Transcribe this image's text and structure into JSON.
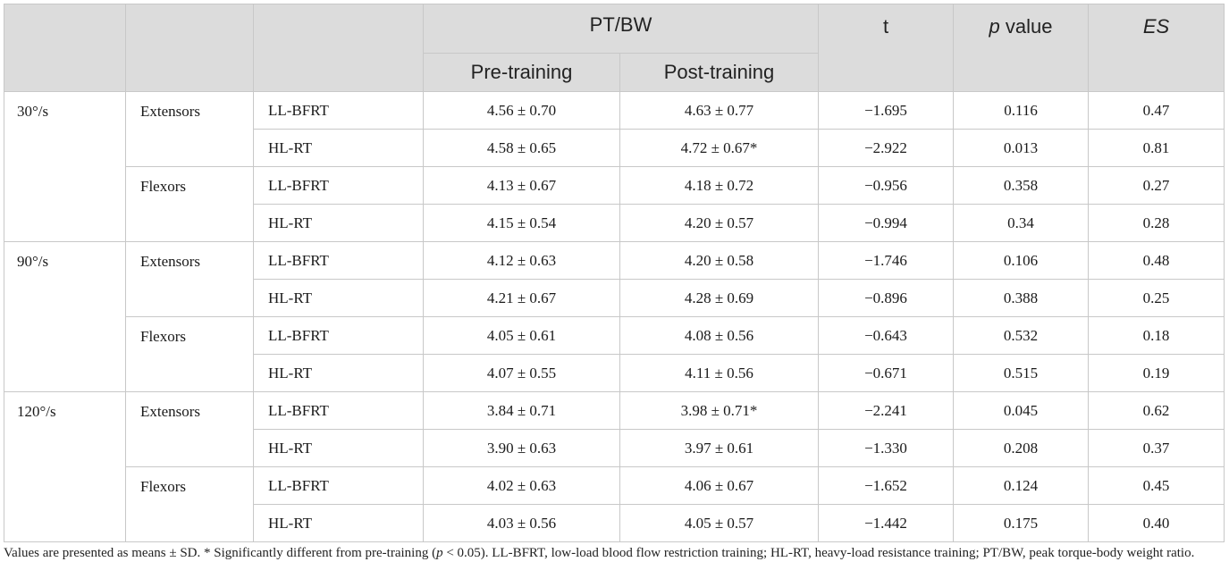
{
  "header": {
    "group_label": "PT/BW",
    "pre_label": "Pre-training",
    "post_label": "Post-training",
    "t_label": "t",
    "p_label_italic": "p",
    "p_label_rest": " value",
    "es_label": "ES"
  },
  "rows": [
    {
      "speed": "30°/s",
      "muscle": "Extensors",
      "group": "LL-BFRT",
      "pre": "4.56 ± 0.70",
      "post": "4.63 ± 0.77",
      "t": "−1.695",
      "p": "0.116",
      "es": "0.47"
    },
    {
      "speed": "",
      "muscle": "",
      "group": "HL-RT",
      "pre": "4.58 ± 0.65",
      "post": "4.72 ± 0.67*",
      "t": "−2.922",
      "p": "0.013",
      "es": "0.81"
    },
    {
      "speed": "",
      "muscle": "Flexors",
      "group": "LL-BFRT",
      "pre": "4.13 ± 0.67",
      "post": "4.18 ± 0.72",
      "t": "−0.956",
      "p": "0.358",
      "es": "0.27"
    },
    {
      "speed": "",
      "muscle": "",
      "group": "HL-RT",
      "pre": "4.15 ± 0.54",
      "post": "4.20 ± 0.57",
      "t": "−0.994",
      "p": "0.34",
      "es": "0.28"
    },
    {
      "speed": "90°/s",
      "muscle": "Extensors",
      "group": "LL-BFRT",
      "pre": "4.12 ± 0.63",
      "post": "4.20 ± 0.58",
      "t": "−1.746",
      "p": "0.106",
      "es": "0.48"
    },
    {
      "speed": "",
      "muscle": "",
      "group": "HL-RT",
      "pre": "4.21 ± 0.67",
      "post": "4.28 ± 0.69",
      "t": "−0.896",
      "p": "0.388",
      "es": "0.25"
    },
    {
      "speed": "",
      "muscle": "Flexors",
      "group": "LL-BFRT",
      "pre": "4.05 ± 0.61",
      "post": "4.08 ± 0.56",
      "t": "−0.643",
      "p": "0.532",
      "es": "0.18"
    },
    {
      "speed": "",
      "muscle": "",
      "group": "HL-RT",
      "pre": "4.07 ± 0.55",
      "post": "4.11 ± 0.56",
      "t": "−0.671",
      "p": "0.515",
      "es": "0.19"
    },
    {
      "speed": "120°/s",
      "muscle": "Extensors",
      "group": "LL-BFRT",
      "pre": "3.84 ± 0.71",
      "post": "3.98 ± 0.71*",
      "t": "−2.241",
      "p": "0.045",
      "es": "0.62"
    },
    {
      "speed": "",
      "muscle": "",
      "group": "HL-RT",
      "pre": "3.90 ± 0.63",
      "post": "3.97 ± 0.61",
      "t": "−1.330",
      "p": "0.208",
      "es": "0.37"
    },
    {
      "speed": "",
      "muscle": "Flexors",
      "group": "LL-BFRT",
      "pre": "4.02 ± 0.63",
      "post": "4.06 ± 0.67",
      "t": "−1.652",
      "p": "0.124",
      "es": "0.45"
    },
    {
      "speed": "",
      "muscle": "",
      "group": "HL-RT",
      "pre": "4.03 ± 0.56",
      "post": "4.05 ± 0.57",
      "t": "−1.442",
      "p": "0.175",
      "es": "0.40"
    }
  ],
  "footnote": {
    "part1": "Values are presented as means ± SD. * Significantly different from pre-training (",
    "p_italic": "p",
    "part2": " < 0.05). LL-BFRT, low-load blood flow restriction training; HL-RT, heavy-load resistance training; PT/BW, peak torque-body weight ratio."
  }
}
